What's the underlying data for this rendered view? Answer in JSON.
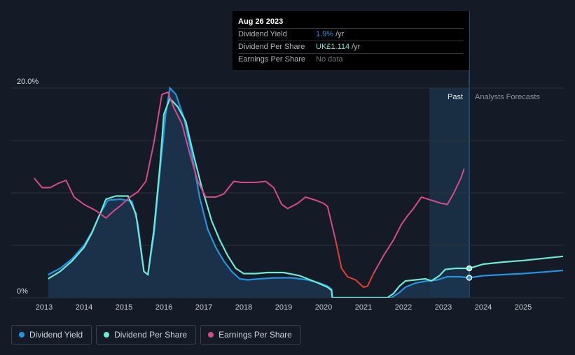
{
  "colors": {
    "background": "#151b26",
    "grid": "#2b313b",
    "dividend_yield": "#2394df",
    "dividend_per_share": "#6fe8d4",
    "earnings_per_share": "#d54b8a",
    "earnings_decline": "#e2402e",
    "area_fill": "#1b3550",
    "forecast_band": "#1a3147"
  },
  "tooltip": {
    "date": "Aug 26 2023",
    "rows": [
      {
        "label": "Dividend Yield",
        "value": "1.9%",
        "unit": "/yr",
        "color": "#2394df"
      },
      {
        "label": "Dividend Per Share",
        "value": "UK£1.114",
        "unit": "/yr",
        "color": "#6fe8d4"
      },
      {
        "label": "Earnings Per Share",
        "value": "No data",
        "unit": ""
      }
    ]
  },
  "legend": [
    {
      "label": "Dividend Yield",
      "color": "#2394df"
    },
    {
      "label": "Dividend Per Share",
      "color": "#6fe8d4"
    },
    {
      "label": "Earnings Per Share",
      "color": "#d54b8a"
    }
  ],
  "chart_data": {
    "type": "line",
    "title": "",
    "xlabel": "",
    "ylabel": "",
    "xlim": [
      2012.75,
      2026.0
    ],
    "ylim": [
      0,
      20
    ],
    "y_tick_labels": [
      {
        "value": 20,
        "label": "20.0%"
      },
      {
        "value": 0,
        "label": "0%"
      }
    ],
    "y_gridlines": [
      20,
      15,
      10,
      5,
      0
    ],
    "x_ticks": [
      2013,
      2014,
      2015,
      2016,
      2017,
      2018,
      2019,
      2020,
      2021,
      2022,
      2023,
      2024,
      2025
    ],
    "past_label": "Past",
    "forecast_label": "Analysts Forecasts",
    "forecast_start": 2023.65,
    "forecast_band_start": 2022.65,
    "marker_x": 2023.65,
    "series": [
      {
        "name": "Dividend Yield",
        "key": "dividend_yield",
        "points": [
          [
            2013.1,
            2.2
          ],
          [
            2013.4,
            2.8
          ],
          [
            2013.7,
            3.7
          ],
          [
            2014.0,
            5.0
          ],
          [
            2014.2,
            6.3
          ],
          [
            2014.4,
            8.0
          ],
          [
            2014.6,
            9.3
          ],
          [
            2014.9,
            9.4
          ],
          [
            2015.2,
            9.2
          ],
          [
            2015.35,
            7.0
          ],
          [
            2015.5,
            2.5
          ],
          [
            2015.6,
            2.2
          ],
          [
            2015.75,
            6.0
          ],
          [
            2015.9,
            12.0
          ],
          [
            2016.05,
            17.6
          ],
          [
            2016.15,
            20.0
          ],
          [
            2016.3,
            19.4
          ],
          [
            2016.5,
            17.2
          ],
          [
            2016.7,
            13.7
          ],
          [
            2016.9,
            9.5
          ],
          [
            2017.1,
            6.5
          ],
          [
            2017.3,
            4.8
          ],
          [
            2017.5,
            3.5
          ],
          [
            2017.7,
            2.5
          ],
          [
            2017.9,
            1.8
          ],
          [
            2018.1,
            1.7
          ],
          [
            2018.4,
            1.8
          ],
          [
            2018.8,
            1.9
          ],
          [
            2019.2,
            1.9
          ],
          [
            2019.6,
            1.7
          ],
          [
            2019.9,
            1.4
          ],
          [
            2020.1,
            1.1
          ],
          [
            2020.2,
            0.8
          ],
          [
            2020.22,
            0
          ],
          [
            2021.7,
            0
          ],
          [
            2021.9,
            0.5
          ],
          [
            2022.05,
            1.0
          ],
          [
            2022.3,
            1.4
          ],
          [
            2022.6,
            1.6
          ],
          [
            2022.85,
            1.7
          ],
          [
            2023.1,
            2.0
          ],
          [
            2023.4,
            2.0
          ],
          [
            2023.65,
            1.9
          ],
          [
            2024.0,
            2.1
          ],
          [
            2024.5,
            2.2
          ],
          [
            2025.0,
            2.3
          ],
          [
            2025.5,
            2.45
          ],
          [
            2026.0,
            2.6
          ]
        ]
      },
      {
        "name": "Dividend Per Share",
        "key": "dividend_per_share",
        "points": [
          [
            2013.1,
            1.8
          ],
          [
            2013.4,
            2.5
          ],
          [
            2013.7,
            3.5
          ],
          [
            2014.0,
            4.8
          ],
          [
            2014.2,
            6.2
          ],
          [
            2014.4,
            8.0
          ],
          [
            2014.55,
            9.4
          ],
          [
            2014.8,
            9.7
          ],
          [
            2015.1,
            9.7
          ],
          [
            2015.3,
            8.0
          ],
          [
            2015.5,
            2.5
          ],
          [
            2015.6,
            2.2
          ],
          [
            2015.75,
            6.5
          ],
          [
            2015.9,
            12.5
          ],
          [
            2016.0,
            17.5
          ],
          [
            2016.15,
            19.0
          ],
          [
            2016.35,
            18.2
          ],
          [
            2016.55,
            16.8
          ],
          [
            2016.75,
            13.5
          ],
          [
            2016.95,
            10.5
          ],
          [
            2017.2,
            7.3
          ],
          [
            2017.4,
            5.5
          ],
          [
            2017.6,
            4.0
          ],
          [
            2017.8,
            2.8
          ],
          [
            2018.0,
            2.3
          ],
          [
            2018.3,
            2.3
          ],
          [
            2018.6,
            2.4
          ],
          [
            2019.0,
            2.4
          ],
          [
            2019.4,
            2.1
          ],
          [
            2019.8,
            1.5
          ],
          [
            2020.1,
            1.0
          ],
          [
            2020.2,
            0.7
          ],
          [
            2020.22,
            0
          ],
          [
            2021.6,
            0
          ],
          [
            2021.75,
            0.4
          ],
          [
            2021.9,
            1.1
          ],
          [
            2022.05,
            1.6
          ],
          [
            2022.3,
            1.7
          ],
          [
            2022.55,
            1.8
          ],
          [
            2022.7,
            1.6
          ],
          [
            2022.9,
            2.1
          ],
          [
            2023.05,
            2.7
          ],
          [
            2023.3,
            2.8
          ],
          [
            2023.65,
            2.8
          ],
          [
            2024.0,
            3.2
          ],
          [
            2024.5,
            3.4
          ],
          [
            2025.0,
            3.55
          ],
          [
            2025.5,
            3.75
          ],
          [
            2026.0,
            3.95
          ]
        ]
      },
      {
        "name": "Earnings Per Share",
        "key": "earnings_per_share",
        "points": [
          [
            2012.75,
            11.4
          ],
          [
            2012.95,
            10.5
          ],
          [
            2013.15,
            10.5
          ],
          [
            2013.35,
            10.9
          ],
          [
            2013.55,
            11.2
          ],
          [
            2013.75,
            9.6
          ],
          [
            2014.0,
            8.9
          ],
          [
            2014.3,
            8.3
          ],
          [
            2014.55,
            7.6
          ],
          [
            2014.75,
            8.3
          ],
          [
            2014.95,
            8.9
          ],
          [
            2015.15,
            9.6
          ],
          [
            2015.35,
            10.1
          ],
          [
            2015.55,
            11.1
          ],
          [
            2015.75,
            14.8
          ],
          [
            2015.95,
            19.4
          ],
          [
            2016.1,
            19.6
          ],
          [
            2016.25,
            18.1
          ],
          [
            2016.45,
            16.6
          ],
          [
            2016.65,
            13.7
          ],
          [
            2016.85,
            11.1
          ],
          [
            2017.05,
            9.6
          ],
          [
            2017.3,
            9.6
          ],
          [
            2017.5,
            9.9
          ],
          [
            2017.75,
            11.1
          ],
          [
            2017.95,
            11.0
          ],
          [
            2018.3,
            11.0
          ],
          [
            2018.55,
            11.1
          ],
          [
            2018.75,
            10.5
          ],
          [
            2018.95,
            8.9
          ],
          [
            2019.1,
            8.5
          ],
          [
            2019.35,
            9.0
          ],
          [
            2019.55,
            9.6
          ],
          [
            2019.8,
            9.3
          ],
          [
            2020.0,
            9.0
          ],
          [
            2020.1,
            8.7
          ],
          [
            2020.3,
            5.5
          ],
          [
            2020.45,
            2.8
          ],
          [
            2020.6,
            2.0
          ],
          [
            2020.8,
            1.7
          ],
          [
            2021.0,
            1.0
          ],
          [
            2021.1,
            1.1
          ],
          [
            2021.25,
            2.3
          ],
          [
            2021.5,
            4.0
          ],
          [
            2021.75,
            5.5
          ],
          [
            2021.95,
            7.0
          ],
          [
            2022.1,
            7.8
          ],
          [
            2022.25,
            8.5
          ],
          [
            2022.45,
            9.6
          ],
          [
            2022.7,
            9.3
          ],
          [
            2022.95,
            9.0
          ],
          [
            2023.1,
            8.9
          ],
          [
            2023.25,
            9.9
          ],
          [
            2023.45,
            11.5
          ],
          [
            2023.52,
            12.3
          ]
        ],
        "decline_range": [
          2020.15,
          2021.35
        ]
      }
    ]
  }
}
